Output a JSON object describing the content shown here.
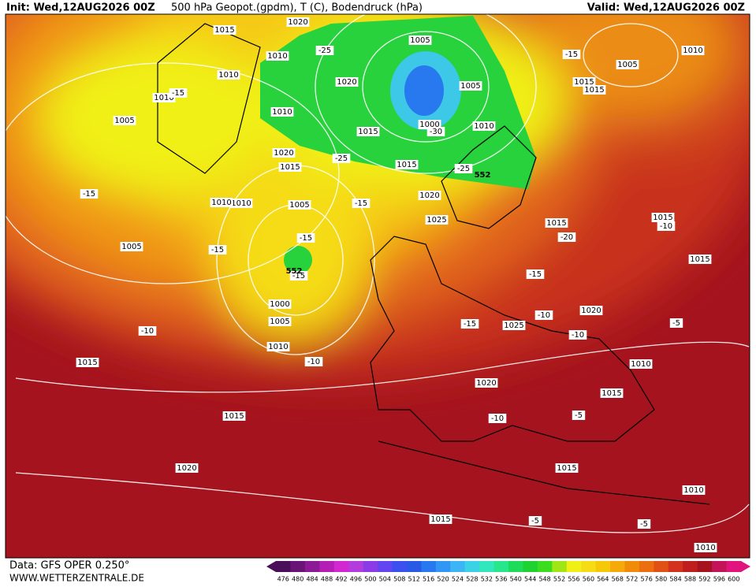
{
  "header": {
    "init": "Init: Wed,12AUG2026 00Z",
    "title": "500 hPa Geopot.(gpdm), T (C), Bodendruck (hPa)",
    "valid": "Valid: Wed,12AUG2026 00Z"
  },
  "map": {
    "pressure_labels": [
      "1020",
      "1015",
      "1010",
      "1010",
      "1010",
      "1005",
      "1020",
      "1005",
      "1005",
      "1000",
      "1010",
      "1015",
      "1010",
      "1020",
      "1015",
      "1015",
      "1020",
      "1025",
      "1005",
      "1010",
      "1010",
      "1005",
      "1000",
      "1005",
      "1010",
      "1015",
      "1015",
      "1020",
      "1025",
      "1020",
      "1020",
      "1015",
      "1015",
      "1015",
      "1010",
      "1015",
      "1015",
      "1015",
      "1010",
      "1010",
      "1005",
      "1010",
      "1015",
      "1015"
    ],
    "temperature_labels": [
      "-15",
      "-25",
      "-30",
      "-25",
      "-25",
      "-15",
      "-20",
      "-10",
      "-15",
      "-15",
      "-15",
      "-15",
      "-15",
      "-10",
      "-10",
      "-15",
      "-10",
      "-10",
      "-5",
      "-5",
      "-10",
      "-5",
      "-5",
      "-15"
    ],
    "geopotential_labels": [
      "552",
      "552"
    ]
  },
  "colorbar": {
    "levels": [
      476,
      480,
      484,
      488,
      492,
      496,
      500,
      504,
      508,
      512,
      516,
      520,
      524,
      528,
      532,
      536,
      540,
      544,
      548,
      552,
      556,
      560,
      564,
      568,
      572,
      576,
      580,
      584,
      588,
      592,
      596,
      600
    ],
    "colors": [
      "#4b0f5a",
      "#6a1478",
      "#8c1a96",
      "#b41eb4",
      "#d228d2",
      "#b43cdc",
      "#8c3ce6",
      "#6446f0",
      "#3c50f0",
      "#285ae6",
      "#2878f0",
      "#3296f5",
      "#3cb4f5",
      "#3cd2e6",
      "#32e6be",
      "#28e68c",
      "#1edc5a",
      "#1ed232",
      "#3cdc1e",
      "#a0e614",
      "#f0f014",
      "#f5dc14",
      "#f5c80a",
      "#f5aa0a",
      "#f08c0a",
      "#eb6e0f",
      "#e15014",
      "#d2321e",
      "#be1e1e",
      "#a5141e",
      "#c3145a",
      "#e1147d"
    ]
  },
  "footer": {
    "data": "Data: GFS OPER 0.250°",
    "site": "WWW.WETTERZENTRALE.DE"
  }
}
